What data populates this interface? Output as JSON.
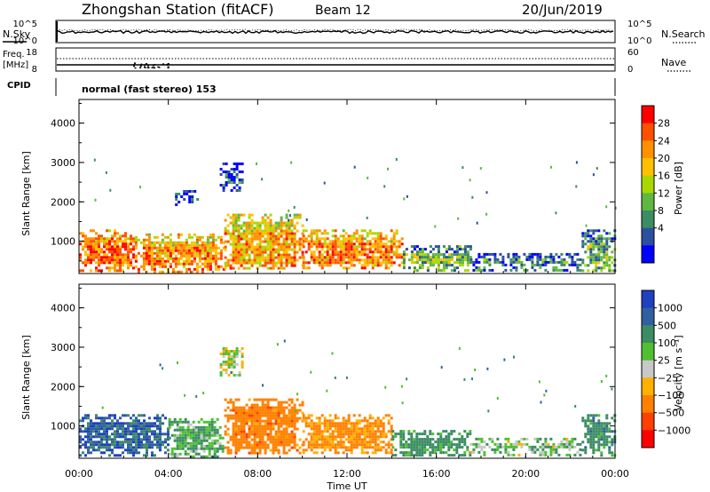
{
  "header": {
    "title": "Zhongshan Station (fitACF)",
    "beam": "Beam 12",
    "date": "20/Jun/2019"
  },
  "noise_panel": {
    "left_label": "N.Sky",
    "right_label": "N.Search",
    "left_ticks": [
      "10^5",
      "10^0"
    ],
    "right_ticks": [
      "10^5",
      "10^0"
    ]
  },
  "freq_panel": {
    "left_label_1": "Freq.",
    "left_label_2": "[MHz]",
    "right_label": "Nave",
    "left_ticks": [
      "18",
      "8"
    ],
    "right_ticks": [
      "60",
      "0"
    ]
  },
  "cpid": {
    "label": "CPID",
    "text": "normal (fast stereo) 153"
  },
  "power_panel": {
    "ylabel": "Slant Range [km]",
    "colorbar_label": "Power [dB]",
    "colorbar_ticks": [
      "28",
      "24",
      "20",
      "16",
      "12",
      "8",
      "4"
    ],
    "colors": [
      "#ff0000",
      "#ff5000",
      "#ff9000",
      "#ffc000",
      "#a8d800",
      "#60b840",
      "#3c8c64",
      "#2c50a0",
      "#0000ff"
    ]
  },
  "velocity_panel": {
    "ylabel": "Slant Range [km]",
    "colorbar_label": "Velocity [m s⁻¹]",
    "colorbar_ticks": [
      "1000",
      "500",
      "100",
      "25",
      "−25",
      "−100",
      "−500",
      "−1000"
    ],
    "colors": [
      "#2040c0",
      "#3060a0",
      "#3c8c64",
      "#50c030",
      "#c8c8c8",
      "#ffb000",
      "#ff8000",
      "#ff4000",
      "#ff0000"
    ]
  },
  "xaxis": {
    "label": "Time UT",
    "ticks": [
      "00:00",
      "04:00",
      "08:00",
      "12:00",
      "16:00",
      "20:00",
      "00:00"
    ]
  },
  "chart_data": [
    {
      "type": "heatmap",
      "title": "Power",
      "xlabel": "Time UT",
      "ylabel": "Slant Range [km]",
      "xlim": [
        0,
        24
      ],
      "ylim": [
        180,
        4600
      ],
      "y_ticks": [
        1000,
        2000,
        3000,
        4000
      ],
      "colorbar": {
        "label": "Power [dB]",
        "ticks": [
          4,
          8,
          12,
          16,
          20,
          24,
          28
        ],
        "range": [
          0,
          32
        ]
      },
      "regions": [
        {
          "t0": 0.0,
          "t1": 2.5,
          "r0": 250,
          "r1": 1300,
          "value": 26
        },
        {
          "t0": 2.5,
          "t1": 6.5,
          "r0": 250,
          "r1": 1200,
          "value": 24
        },
        {
          "t0": 6.5,
          "t1": 10.0,
          "r0": 300,
          "r1": 1700,
          "value": 22
        },
        {
          "t0": 10.0,
          "t1": 14.5,
          "r0": 300,
          "r1": 1300,
          "value": 24
        },
        {
          "t0": 14.5,
          "t1": 17.5,
          "r0": 250,
          "r1": 900,
          "value": 12
        },
        {
          "t0": 17.5,
          "t1": 22.5,
          "r0": 250,
          "r1": 700,
          "value": 8
        },
        {
          "t0": 22.5,
          "t1": 24.0,
          "r0": 250,
          "r1": 1300,
          "value": 12
        },
        {
          "t0": 4.3,
          "t1": 5.3,
          "r0": 1900,
          "r1": 2300,
          "value": 6
        },
        {
          "t0": 6.3,
          "t1": 7.3,
          "r0": 2300,
          "r1": 3000,
          "value": 5
        }
      ]
    },
    {
      "type": "heatmap",
      "title": "Velocity",
      "xlabel": "Time UT",
      "ylabel": "Slant Range [km]",
      "xlim": [
        0,
        24
      ],
      "ylim": [
        180,
        4600
      ],
      "y_ticks": [
        1000,
        2000,
        3000,
        4000
      ],
      "colorbar": {
        "label": "Velocity [m s⁻¹]",
        "ticks": [
          1000,
          500,
          100,
          25,
          -25,
          -100,
          -500,
          -1000
        ]
      },
      "regions": [
        {
          "t0": 0.0,
          "t1": 4.0,
          "r0": 250,
          "r1": 1300,
          "value": 800
        },
        {
          "t0": 4.0,
          "t1": 6.5,
          "r0": 250,
          "r1": 1200,
          "value": 100
        },
        {
          "t0": 6.5,
          "t1": 10.0,
          "r0": 300,
          "r1": 1700,
          "value": -300
        },
        {
          "t0": 10.0,
          "t1": 14.0,
          "r0": 300,
          "r1": 1300,
          "value": -150
        },
        {
          "t0": 14.0,
          "t1": 17.5,
          "r0": 250,
          "r1": 900,
          "value": 200
        },
        {
          "t0": 17.5,
          "t1": 22.5,
          "r0": 250,
          "r1": 700,
          "value": 60
        },
        {
          "t0": 22.5,
          "t1": 24.0,
          "r0": 250,
          "r1": 1300,
          "value": 300
        },
        {
          "t0": 6.3,
          "t1": 7.3,
          "r0": 2300,
          "r1": 3000,
          "value": 0
        }
      ]
    }
  ]
}
